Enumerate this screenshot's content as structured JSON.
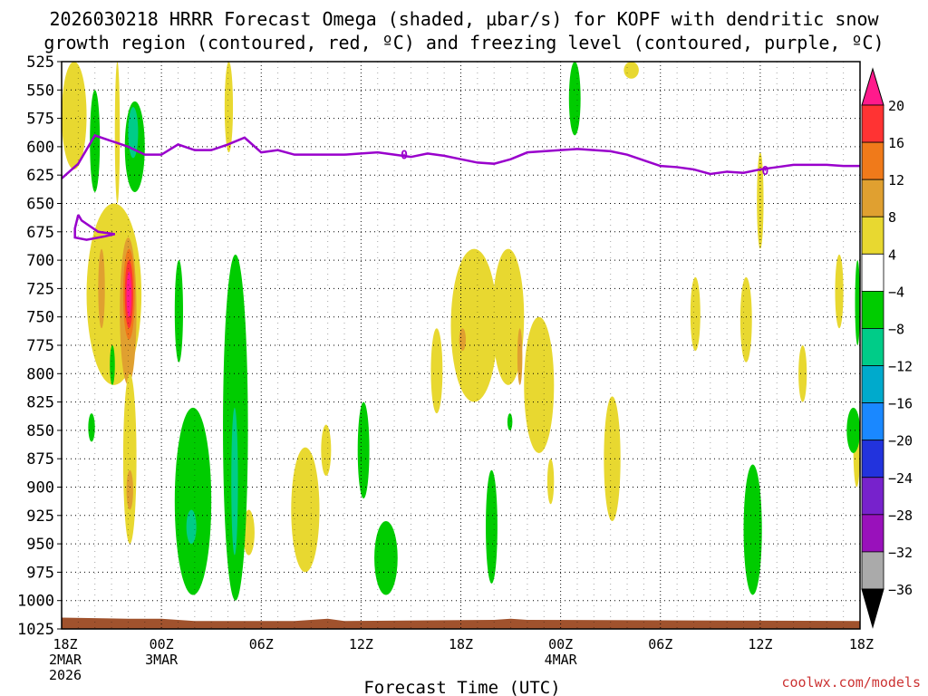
{
  "chart_data": {
    "type": "heatmap",
    "title_lines": [
      "2026030218 HRRR Forecast Omega (shaded, µbar/s) for KOPF with dendritic snow",
      "growth region (contoured, red, ºC) and freezing level (contoured, purple, ºC)"
    ],
    "xlabel": "Forecast Time (UTC)",
    "credit": "coolwx.com/models",
    "y_levels": [
      525,
      550,
      575,
      600,
      625,
      650,
      675,
      700,
      725,
      750,
      775,
      800,
      825,
      850,
      875,
      900,
      925,
      950,
      975,
      1000,
      1025
    ],
    "x_ticks": [
      {
        "hour": 0,
        "lines": [
          "18Z",
          "2MAR",
          "2026"
        ]
      },
      {
        "hour": 6,
        "lines": [
          "00Z",
          "3MAR"
        ]
      },
      {
        "hour": 12,
        "lines": [
          "06Z"
        ]
      },
      {
        "hour": 18,
        "lines": [
          "12Z"
        ]
      },
      {
        "hour": 24,
        "lines": [
          "18Z"
        ]
      },
      {
        "hour": 30,
        "lines": [
          "00Z",
          "4MAR"
        ]
      },
      {
        "hour": 36,
        "lines": [
          "06Z"
        ]
      },
      {
        "hour": 42,
        "lines": [
          "12Z"
        ]
      },
      {
        "hour": 48,
        "lines": [
          "18Z"
        ]
      }
    ],
    "colorbar": {
      "labels": [
        "20",
        "16",
        "12",
        "8",
        "4",
        "−4",
        "−8",
        "−12",
        "−16",
        "−20",
        "−24",
        "−28",
        "−32",
        "−36"
      ],
      "colors": [
        "#ff1a8c",
        "#ff3333",
        "#f07a1a",
        "#e0a030",
        "#e8d830",
        "#ffffff",
        "#00cc00",
        "#00cc88",
        "#00aacc",
        "#1a88ff",
        "#2233dd",
        "#7722cc",
        "#9911bb",
        "#aaaaaa",
        "#000000"
      ]
    },
    "freezing_level_label": "0",
    "freezing_level": [
      [
        0,
        628
      ],
      [
        1,
        615
      ],
      [
        2,
        590
      ],
      [
        3,
        595
      ],
      [
        4,
        600
      ],
      [
        5,
        607
      ],
      [
        6,
        607
      ],
      [
        7,
        598
      ],
      [
        8,
        603
      ],
      [
        9,
        603
      ],
      [
        10,
        598
      ],
      [
        11,
        592
      ],
      [
        12,
        605
      ],
      [
        13,
        603
      ],
      [
        14,
        607
      ],
      [
        15,
        607
      ],
      [
        16,
        607
      ],
      [
        17,
        607
      ],
      [
        18,
        606
      ],
      [
        19,
        605
      ],
      [
        20,
        607
      ],
      [
        21,
        609
      ],
      [
        22,
        606
      ],
      [
        23,
        608
      ],
      [
        24,
        611
      ],
      [
        25,
        614
      ],
      [
        26,
        615
      ],
      [
        27,
        611
      ],
      [
        28,
        605
      ],
      [
        29,
        604
      ],
      [
        30,
        603
      ],
      [
        31,
        602
      ],
      [
        32,
        603
      ],
      [
        33,
        604
      ],
      [
        34,
        607
      ],
      [
        35,
        612
      ],
      [
        36,
        617
      ],
      [
        37,
        618
      ],
      [
        38,
        620
      ],
      [
        39,
        624
      ],
      [
        40,
        622
      ],
      [
        41,
        623
      ],
      [
        42,
        620
      ],
      [
        43,
        618
      ],
      [
        44,
        616
      ],
      [
        45,
        616
      ],
      [
        46,
        616
      ],
      [
        47,
        617
      ],
      [
        48,
        617
      ]
    ],
    "freezing_level_loop": [
      [
        1,
        660
      ],
      [
        0.8,
        672
      ],
      [
        0.8,
        680
      ],
      [
        1.5,
        682
      ],
      [
        2.6,
        679
      ],
      [
        3.2,
        677
      ],
      [
        2.2,
        675
      ],
      [
        1.2,
        665
      ],
      [
        1,
        660
      ]
    ],
    "shaded_regions": [
      {
        "name": "Omega 4 to 8",
        "color": "#e8d830",
        "x": [
          0,
          1.5
        ],
        "y": [
          525,
          620
        ]
      },
      {
        "name": "Omega 4 to 8",
        "color": "#e8d830",
        "x": [
          3.2,
          3.5
        ],
        "y": [
          525,
          650
        ]
      },
      {
        "name": "Omega 4 to 8",
        "color": "#e8d830",
        "x": [
          1.5,
          4.8
        ],
        "y": [
          650,
          810
        ]
      },
      {
        "name": "Omega 8 to 12",
        "color": "#e0a030",
        "x": [
          3.5,
          4.5
        ],
        "y": [
          680,
          810
        ]
      },
      {
        "name": "Omega 12 to 16",
        "color": "#f07a1a",
        "x": [
          3.7,
          4.4
        ],
        "y": [
          690,
          770
        ]
      },
      {
        "name": "Omega 16 to 20",
        "color": "#ff3333",
        "x": [
          3.8,
          4.3
        ],
        "y": [
          700,
          760
        ]
      },
      {
        "name": "Omega > 20",
        "color": "#ff1a8c",
        "x": [
          3.9,
          4.2
        ],
        "y": [
          710,
          750
        ]
      },
      {
        "name": "Omega 4 to 8",
        "color": "#e8d830",
        "x": [
          2,
          2.8
        ],
        "y": [
          680,
          775
        ]
      },
      {
        "name": "Omega 8 to 12",
        "color": "#e0a030",
        "x": [
          2.2,
          2.6
        ],
        "y": [
          690,
          760
        ]
      },
      {
        "name": "Omega 4 to 8",
        "color": "#e8d830",
        "x": [
          3.7,
          4.5
        ],
        "y": [
          800,
          950
        ]
      },
      {
        "name": "Omega 8 to 12",
        "color": "#e0a030",
        "x": [
          3.9,
          4.3
        ],
        "y": [
          885,
          920
        ]
      },
      {
        "name": "Omega 4 to 8",
        "color": "#e8d830",
        "x": [
          9.8,
          10.3
        ],
        "y": [
          525,
          605
        ]
      },
      {
        "name": "Omega 4 to 8",
        "color": "#e8d830",
        "x": [
          10.9,
          11.6
        ],
        "y": [
          920,
          960
        ]
      },
      {
        "name": "Omega 4 to 8",
        "color": "#e8d830",
        "x": [
          13.8,
          15.5
        ],
        "y": [
          865,
          975
        ]
      },
      {
        "name": "Omega 4 to 8",
        "color": "#e8d830",
        "x": [
          15.6,
          16.2
        ],
        "y": [
          845,
          890
        ]
      },
      {
        "name": "Omega 4 to 8",
        "color": "#e8d830",
        "x": [
          22.2,
          22.9
        ],
        "y": [
          760,
          835
        ]
      },
      {
        "name": "Omega 4 to 8",
        "color": "#e8d830",
        "x": [
          23.4,
          26.2
        ],
        "y": [
          690,
          825
        ]
      },
      {
        "name": "Omega 4 to 8",
        "color": "#e8d830",
        "x": [
          25.9,
          27.8
        ],
        "y": [
          690,
          810
        ]
      },
      {
        "name": "Omega 8 to 12",
        "color": "#e0a030",
        "x": [
          23.9,
          24.3
        ],
        "y": [
          760,
          780
        ]
      },
      {
        "name": "Omega 8 to 12",
        "color": "#e0a030",
        "x": [
          27.4,
          27.7
        ],
        "y": [
          760,
          810
        ]
      },
      {
        "name": "Omega 4 to 8",
        "color": "#e8d830",
        "x": [
          27.8,
          29.6
        ],
        "y": [
          750,
          870
        ]
      },
      {
        "name": "Omega 4 to 8",
        "color": "#e8d830",
        "x": [
          29.2,
          29.6
        ],
        "y": [
          875,
          915
        ]
      },
      {
        "name": "Omega 4 to 8",
        "color": "#e8d830",
        "x": [
          32.6,
          33.6
        ],
        "y": [
          820,
          930
        ]
      },
      {
        "name": "Omega 4 to 8",
        "color": "#e8d830",
        "x": [
          33.8,
          34.7
        ],
        "y": [
          525,
          540
        ]
      },
      {
        "name": "Omega 4 to 8",
        "color": "#e8d830",
        "x": [
          37.8,
          38.4
        ],
        "y": [
          715,
          780
        ]
      },
      {
        "name": "Omega 4 to 8",
        "color": "#e8d830",
        "x": [
          40.8,
          41.5
        ],
        "y": [
          715,
          790
        ]
      },
      {
        "name": "Omega 4 to 8",
        "color": "#e8d830",
        "x": [
          41.8,
          42.2
        ],
        "y": [
          605,
          690
        ]
      },
      {
        "name": "Omega 4 to 8",
        "color": "#e8d830",
        "x": [
          44.3,
          44.8
        ],
        "y": [
          775,
          825
        ]
      },
      {
        "name": "Omega 4 to 8",
        "color": "#e8d830",
        "x": [
          46.5,
          47
        ],
        "y": [
          695,
          760
        ]
      },
      {
        "name": "Omega 4 to 8",
        "color": "#e8d830",
        "x": [
          47.6,
          48
        ],
        "y": [
          835,
          900
        ]
      },
      {
        "name": "Omega -4 to -8",
        "color": "#00cc00",
        "x": [
          1.7,
          2.3
        ],
        "y": [
          550,
          640
        ]
      },
      {
        "name": "Omega -4 to -8",
        "color": "#00cc00",
        "x": [
          3.8,
          5
        ],
        "y": [
          560,
          640
        ]
      },
      {
        "name": "Omega -8 to -12",
        "color": "#00cc88",
        "x": [
          4.0,
          4.6
        ],
        "y": [
          565,
          610
        ]
      },
      {
        "name": "Omega -4 to -8",
        "color": "#00cc00",
        "x": [
          1.6,
          2.0
        ],
        "y": [
          835,
          860
        ]
      },
      {
        "name": "Omega -4 to -8",
        "color": "#00cc00",
        "x": [
          2.9,
          3.2
        ],
        "y": [
          775,
          810
        ]
      },
      {
        "name": "Omega -4 to -8",
        "color": "#00cc00",
        "x": [
          6.8,
          7.3
        ],
        "y": [
          700,
          790
        ]
      },
      {
        "name": "Omega -4 to -8",
        "color": "#00cc00",
        "x": [
          6.8,
          9
        ],
        "y": [
          830,
          995
        ]
      },
      {
        "name": "Omega -8 to -12",
        "color": "#00cc88",
        "x": [
          7.5,
          8.1
        ],
        "y": [
          920,
          950
        ]
      },
      {
        "name": "Omega -4 to -8",
        "color": "#00cc00",
        "x": [
          9.7,
          11.2
        ],
        "y": [
          695,
          1000
        ]
      },
      {
        "name": "Omega -8 to -12",
        "color": "#00cc88",
        "x": [
          10.2,
          10.6
        ],
        "y": [
          830,
          960
        ]
      },
      {
        "name": "Omega -4 to -8",
        "color": "#00cc00",
        "x": [
          17.8,
          18.5
        ],
        "y": [
          825,
          910
        ]
      },
      {
        "name": "Omega -4 to -8",
        "color": "#00cc00",
        "x": [
          18.8,
          20.2
        ],
        "y": [
          930,
          995
        ]
      },
      {
        "name": "Omega -4 to -8",
        "color": "#00cc00",
        "x": [
          25.5,
          26.2
        ],
        "y": [
          885,
          985
        ]
      },
      {
        "name": "Omega -4 to -8",
        "color": "#00cc00",
        "x": [
          26.8,
          27.1
        ],
        "y": [
          835,
          850
        ]
      },
      {
        "name": "Omega -4 to -8",
        "color": "#00cc00",
        "x": [
          30.5,
          31.2
        ],
        "y": [
          525,
          590
        ]
      },
      {
        "name": "Omega -4 to -8",
        "color": "#00cc00",
        "x": [
          41,
          42.1
        ],
        "y": [
          880,
          995
        ]
      },
      {
        "name": "Omega -4 to -8",
        "color": "#00cc00",
        "x": [
          47.2,
          48
        ],
        "y": [
          830,
          870
        ]
      },
      {
        "name": "Omega -4 to -8",
        "color": "#00cc00",
        "x": [
          47.7,
          48
        ],
        "y": [
          700,
          775
        ]
      }
    ],
    "terrain": [
      [
        0,
        1015
      ],
      [
        4,
        1016
      ],
      [
        6,
        1016
      ],
      [
        7,
        1017
      ],
      [
        8,
        1018
      ],
      [
        14,
        1018
      ],
      [
        15,
        1017
      ],
      [
        16,
        1016
      ],
      [
        17,
        1018
      ],
      [
        26,
        1017
      ],
      [
        27,
        1016
      ],
      [
        28,
        1017
      ],
      [
        48,
        1018
      ]
    ],
    "xlim": [
      0,
      48
    ],
    "ylim": [
      1025,
      525
    ],
    "grid": true
  }
}
